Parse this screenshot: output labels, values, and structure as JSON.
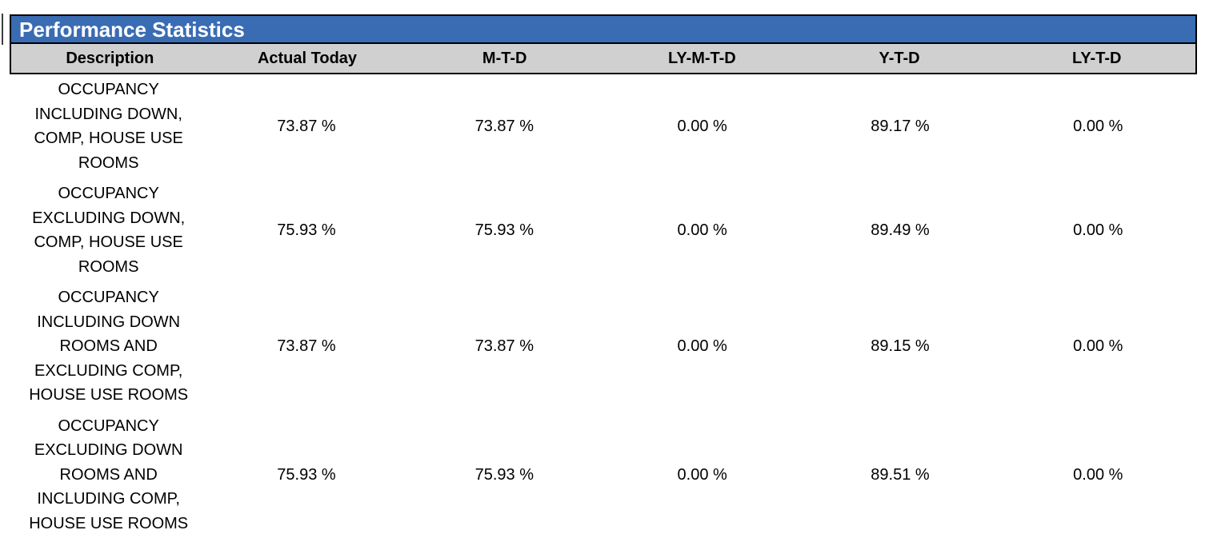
{
  "report": {
    "title": "Performance Statistics",
    "columns": [
      {
        "label": "Description"
      },
      {
        "label": "Actual Today"
      },
      {
        "label": "M-T-D"
      },
      {
        "label": "LY-M-T-D"
      },
      {
        "label": "Y-T-D"
      },
      {
        "label": "LY-T-D"
      }
    ],
    "rows": [
      {
        "description": "OCCUPANCY\nINCLUDING DOWN,\nCOMP, HOUSE USE\nROOMS",
        "actual_today": "73.87 %",
        "mtd": "73.87 %",
        "ly_mtd": "0.00 %",
        "ytd": "89.17 %",
        "ly_td": "0.00 %"
      },
      {
        "description": "OCCUPANCY\nEXCLUDING DOWN,\nCOMP, HOUSE USE\nROOMS",
        "actual_today": "75.93 %",
        "mtd": "75.93 %",
        "ly_mtd": "0.00 %",
        "ytd": "89.49 %",
        "ly_td": "0.00 %"
      },
      {
        "description": "OCCUPANCY\nINCLUDING DOWN\nROOMS AND\nEXCLUDING COMP,\nHOUSE USE ROOMS",
        "actual_today": "73.87 %",
        "mtd": "73.87 %",
        "ly_mtd": "0.00 %",
        "ytd": "89.15 %",
        "ly_td": "0.00 %"
      },
      {
        "description": "OCCUPANCY\nEXCLUDING DOWN\nROOMS AND\nINCLUDING COMP,\nHOUSE USE ROOMS",
        "actual_today": "75.93 %",
        "mtd": "75.93 %",
        "ly_mtd": "0.00 %",
        "ytd": "89.51 %",
        "ly_td": "0.00 %"
      }
    ],
    "colors": {
      "title_bar_background": "#3A6CB3",
      "title_text": "#FFFFFF",
      "column_header_background": "#D0D0D0",
      "border": "#000000",
      "body_text": "#000000",
      "page_background": "#FFFFFF"
    }
  }
}
